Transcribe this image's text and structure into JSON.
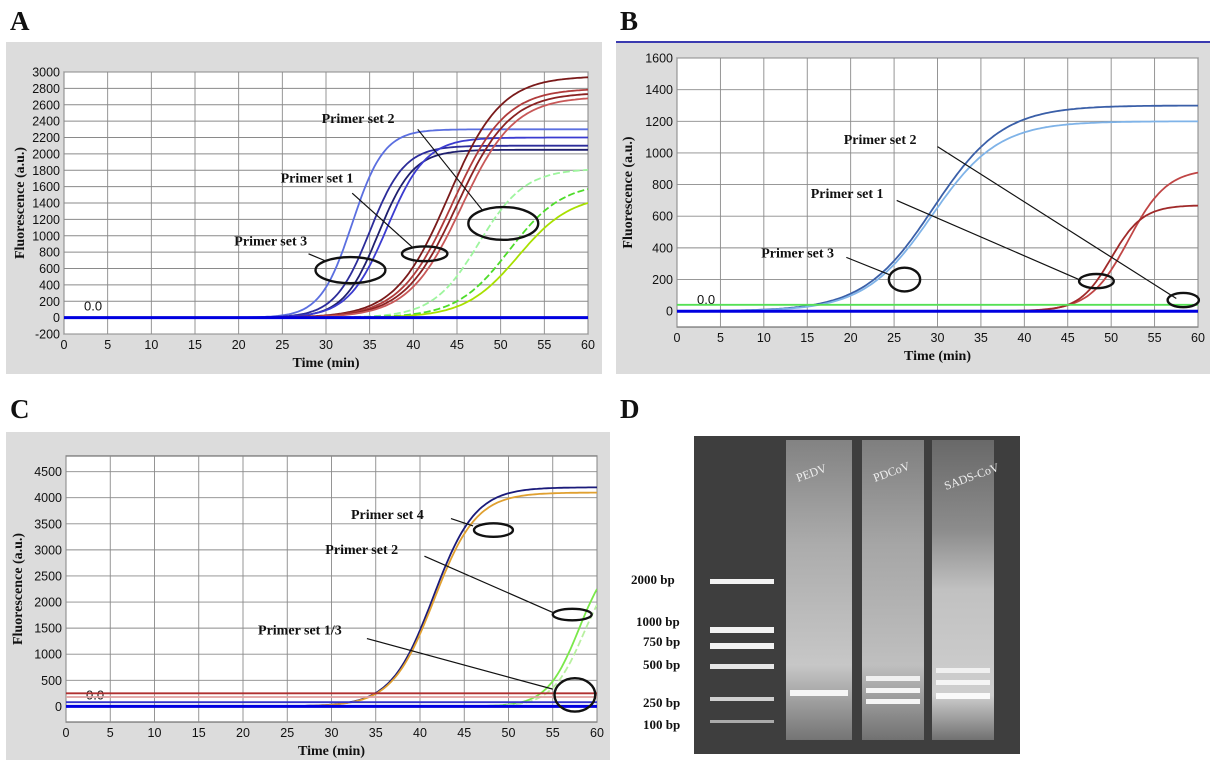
{
  "panels": {
    "a": "A",
    "b": "B",
    "c": "C",
    "d": "D"
  },
  "chart_data": [
    {
      "id": "A",
      "type": "line",
      "xlabel": "Time (min)",
      "ylabel": "Fluorescence (a.u.)",
      "xlim": [
        0,
        60
      ],
      "ylim": [
        -200,
        3000
      ],
      "xticks": [
        0,
        5,
        10,
        15,
        20,
        25,
        30,
        35,
        40,
        45,
        50,
        55,
        60
      ],
      "yticks": [
        -200,
        0,
        200,
        400,
        600,
        800,
        1000,
        1200,
        1400,
        1600,
        1800,
        2000,
        2200,
        2400,
        2600,
        2800,
        3000
      ],
      "baseline_label": "0.0",
      "grid": true,
      "series": [
        {
          "color": "#5b6fe0",
          "mid": 33,
          "k": 0.55,
          "plateau": 2300,
          "dashed": false
        },
        {
          "color": "#2c2c9a",
          "mid": 35,
          "k": 0.5,
          "plateau": 2100,
          "dashed": false
        },
        {
          "color": "#1f1f6e",
          "mid": 36,
          "k": 0.5,
          "plateau": 2050,
          "dashed": false
        },
        {
          "color": "#3b3bd0",
          "mid": 37,
          "k": 0.45,
          "plateau": 2200,
          "dashed": false
        },
        {
          "color": "#7a1a1a",
          "mid": 44,
          "k": 0.33,
          "plateau": 2950,
          "dashed": false
        },
        {
          "color": "#b03b3b",
          "mid": 44.5,
          "k": 0.33,
          "plateau": 2800,
          "dashed": false
        },
        {
          "color": "#8b2222",
          "mid": 45,
          "k": 0.33,
          "plateau": 2750,
          "dashed": false
        },
        {
          "color": "#c85858",
          "mid": 45.5,
          "k": 0.33,
          "plateau": 2700,
          "dashed": false
        },
        {
          "color": "#9ef59e",
          "mid": 47.5,
          "k": 0.38,
          "plateau": 1820,
          "dashed": true
        },
        {
          "color": "#4edc2a",
          "mid": 51,
          "k": 0.33,
          "plateau": 1650,
          "dashed": true
        },
        {
          "color": "#a8e000",
          "mid": 52,
          "k": 0.33,
          "plateau": 1500,
          "dashed": false
        },
        {
          "color": "#0000e0",
          "flat": 0
        }
      ],
      "annotations": [
        {
          "text": "Primer set 2",
          "tx": 29.5,
          "ty": 2380,
          "x1": 40.5,
          "y1": 2300,
          "x2": 48,
          "y2": 1300,
          "ex": 50.3,
          "ey": 1150,
          "erx": 4.0,
          "ery": 200
        },
        {
          "text": "Primer set 1",
          "tx": 24.8,
          "ty": 1650,
          "x1": 33,
          "y1": 1520,
          "x2": 40,
          "y2": 850,
          "ex": 41.3,
          "ey": 780,
          "erx": 2.6,
          "ery": 90
        },
        {
          "text": "Primer set 3",
          "tx": 19.5,
          "ty": 880,
          "x1": 28,
          "y1": 780,
          "x2": 30,
          "y2": 690,
          "ex": 32.8,
          "ey": 580,
          "erx": 4.0,
          "ery": 160
        }
      ]
    },
    {
      "id": "B",
      "type": "line",
      "xlabel": "Time (min)",
      "ylabel": "Fluorescence (a.u.)",
      "xlim": [
        0,
        60
      ],
      "ylim": [
        -100,
        1600
      ],
      "xticks": [
        0,
        5,
        10,
        15,
        20,
        25,
        30,
        35,
        40,
        45,
        50,
        55,
        60
      ],
      "yticks": [
        0,
        200,
        400,
        600,
        800,
        1000,
        1200,
        1400,
        1600
      ],
      "baseline_label": "0.0",
      "grid": true,
      "series": [
        {
          "color": "#3a5fa8",
          "mid": 29.5,
          "k": 0.25,
          "plateau": 1300,
          "dashed": false
        },
        {
          "color": "#7fb3e8",
          "mid": 29.3,
          "k": 0.26,
          "plateau": 1200,
          "dashed": false
        },
        {
          "color": "#c04545",
          "mid": 52,
          "k": 0.45,
          "plateau": 900,
          "dashed": false
        },
        {
          "color": "#a02a2a",
          "mid": 50,
          "k": 0.55,
          "plateau": 670,
          "dashed": false
        },
        {
          "color": "#55e055",
          "flat": 40
        },
        {
          "color": "#0000e0",
          "flat": 0
        }
      ],
      "annotations": [
        {
          "text": "Primer set 2",
          "tx": 19.2,
          "ty": 1055,
          "x1": 30,
          "y1": 1040,
          "x2": 57.5,
          "y2": 80,
          "ex": 58.3,
          "ey": 70,
          "erx": 1.8,
          "ery": 45
        },
        {
          "text": "Primer set 1",
          "tx": 15.4,
          "ty": 715,
          "x1": 25.3,
          "y1": 700,
          "x2": 46.5,
          "y2": 195,
          "ex": 48.3,
          "ey": 190,
          "erx": 2.0,
          "ery": 45
        },
        {
          "text": "Primer set 3",
          "tx": 9.7,
          "ty": 340,
          "x1": 19.5,
          "y1": 340,
          "x2": 24.5,
          "y2": 230,
          "ex": 26.2,
          "ey": 200,
          "erx": 1.8,
          "ery": 75
        }
      ]
    },
    {
      "id": "C",
      "type": "line",
      "xlabel": "Time (min)",
      "ylabel": "Fluorescence (a.u.)",
      "xlim": [
        0,
        60
      ],
      "ylim": [
        -300,
        4800
      ],
      "xticks": [
        0,
        5,
        10,
        15,
        20,
        25,
        30,
        35,
        40,
        45,
        50,
        55,
        60
      ],
      "yticks": [
        0,
        500,
        1000,
        1500,
        2000,
        2500,
        3000,
        3500,
        4000,
        4500
      ],
      "baseline_label": "0.0",
      "grid": true,
      "series": [
        {
          "color": "#1a1a7a",
          "mid": 41.5,
          "k": 0.42,
          "plateau": 4200,
          "dashed": false
        },
        {
          "color": "#e0a030",
          "mid": 41.6,
          "k": 0.42,
          "plateau": 4100,
          "dashed": false
        },
        {
          "color": "#7ae84a",
          "mid": 58,
          "k": 0.55,
          "plateau": 3000,
          "dashed": false
        },
        {
          "color": "#b8f0a0",
          "mid": 58.5,
          "k": 0.55,
          "plateau": 2800,
          "dashed": true
        },
        {
          "color": "#b03030",
          "flat": 250
        },
        {
          "color": "#e0a0a0",
          "flat": 180
        },
        {
          "color": "#3333cc",
          "flat": 80
        },
        {
          "color": "#0000e0",
          "flat": 0
        }
      ],
      "annotations": [
        {
          "text": "Primer set 4",
          "tx": 32.2,
          "ty": 3590,
          "x1": 43.5,
          "y1": 3600,
          "x2": 46,
          "y2": 3460,
          "ex": 48.3,
          "ey": 3380,
          "erx": 2.2,
          "ery": 130
        },
        {
          "text": "Primer set 2",
          "tx": 29.3,
          "ty": 2920,
          "x1": 40.5,
          "y1": 2880,
          "x2": 55,
          "y2": 1800,
          "ex": 57.2,
          "ey": 1760,
          "erx": 2.2,
          "ery": 110
        },
        {
          "text": "Primer set 1/3",
          "tx": 21.7,
          "ty": 1380,
          "x1": 34,
          "y1": 1300,
          "x2": 55,
          "y2": 330,
          "ex": 57.5,
          "ey": 220,
          "erx": 2.3,
          "ery": 320
        }
      ]
    }
  ],
  "gel": {
    "lanes": [
      "PEDV",
      "PDCoV",
      "SADS-CoV"
    ],
    "ladder": [
      "2000 bp",
      "1000 bp",
      "750 bp",
      "500 bp",
      "250 bp",
      "100 bp"
    ]
  }
}
